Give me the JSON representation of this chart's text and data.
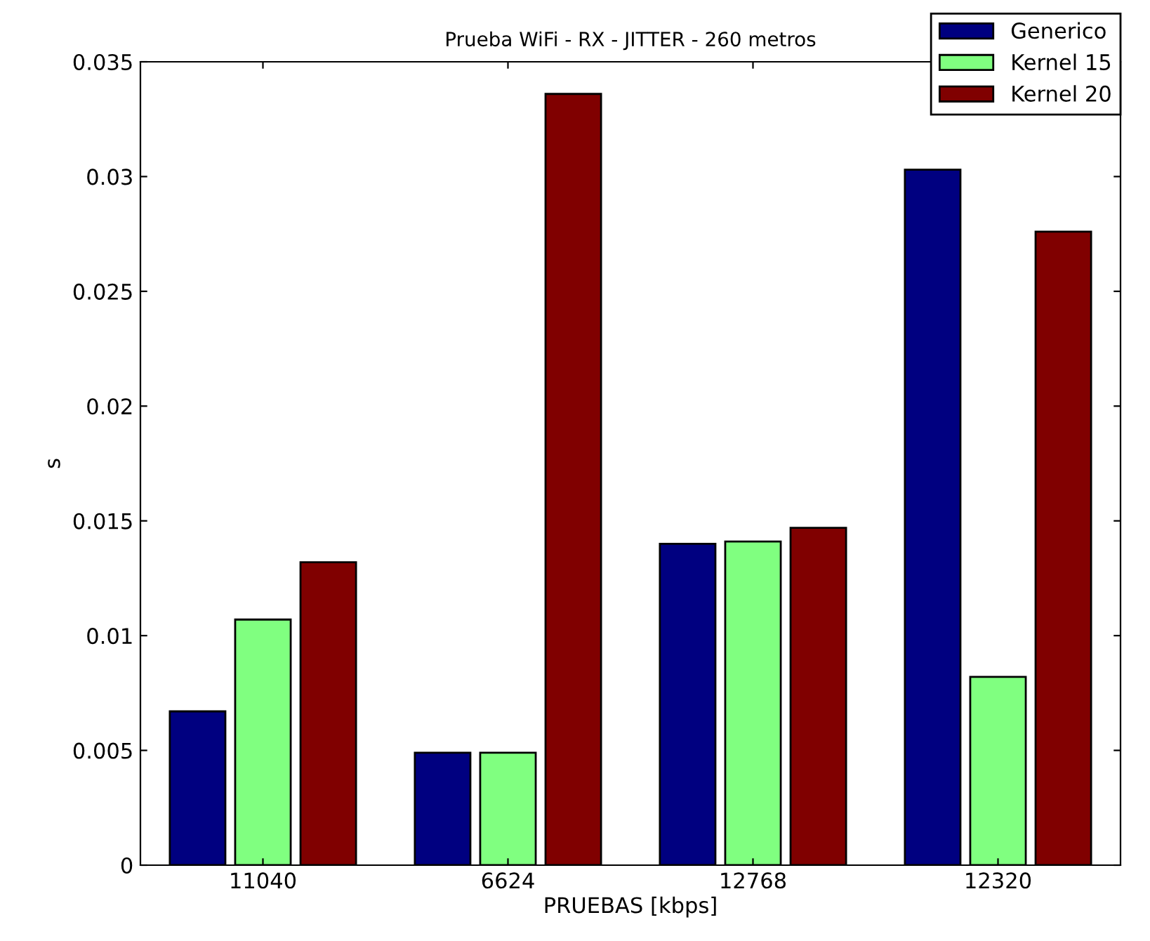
{
  "chart_data": {
    "type": "bar",
    "title": "Prueba WiFi - RX - JITTER - 260 metros",
    "xlabel": "PRUEBAS [kbps]",
    "ylabel": "s",
    "categories": [
      "11040",
      "6624",
      "12768",
      "12320"
    ],
    "series": [
      {
        "name": "Generico",
        "color": "#000080",
        "values": [
          0.0067,
          0.0049,
          0.014,
          0.0303
        ]
      },
      {
        "name": "Kernel 15",
        "color": "#80ff80",
        "values": [
          0.0107,
          0.0049,
          0.0141,
          0.0082
        ]
      },
      {
        "name": "Kernel 20",
        "color": "#800000",
        "values": [
          0.0132,
          0.0336,
          0.0147,
          0.0276
        ]
      }
    ],
    "ylim": [
      0,
      0.035
    ],
    "yticks": [
      {
        "value": 0,
        "label": "0"
      },
      0.005,
      0.01,
      0.015,
      0.02,
      0.025,
      0.03,
      0.035
    ],
    "grid": false,
    "legend": "top right"
  }
}
